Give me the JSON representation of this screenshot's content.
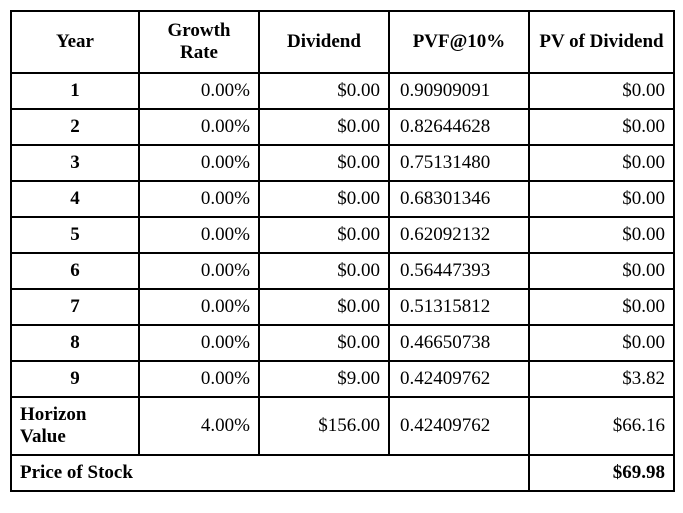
{
  "headers": [
    "Year",
    "Growth Rate",
    "Dividend",
    "PVF@10%",
    "PV of Dividend"
  ],
  "rows": [
    {
      "year": "1",
      "growth": "0.00%",
      "dividend": "$0.00",
      "pvf": "0.90909091",
      "pv": "$0.00"
    },
    {
      "year": "2",
      "growth": "0.00%",
      "dividend": "$0.00",
      "pvf": "0.82644628",
      "pv": "$0.00"
    },
    {
      "year": "3",
      "growth": "0.00%",
      "dividend": "$0.00",
      "pvf": "0.75131480",
      "pv": "$0.00"
    },
    {
      "year": "4",
      "growth": "0.00%",
      "dividend": "$0.00",
      "pvf": "0.68301346",
      "pv": "$0.00"
    },
    {
      "year": "5",
      "growth": "0.00%",
      "dividend": "$0.00",
      "pvf": "0.62092132",
      "pv": "$0.00"
    },
    {
      "year": "6",
      "growth": "0.00%",
      "dividend": "$0.00",
      "pvf": "0.56447393",
      "pv": "$0.00"
    },
    {
      "year": "7",
      "growth": "0.00%",
      "dividend": "$0.00",
      "pvf": "0.51315812",
      "pv": "$0.00"
    },
    {
      "year": "8",
      "growth": "0.00%",
      "dividend": "$0.00",
      "pvf": "0.46650738",
      "pv": "$0.00"
    },
    {
      "year": "9",
      "growth": "0.00%",
      "dividend": "$9.00",
      "pvf": "0.42409762",
      "pv": "$3.82"
    }
  ],
  "horizon": {
    "label": "Horizon Value",
    "growth": "4.00%",
    "dividend": "$156.00",
    "pvf": "0.42409762",
    "pv": "$66.16"
  },
  "price": {
    "label": "Price of Stock",
    "value": "$69.98"
  },
  "style": {
    "border_color": "#000000",
    "background": "#ffffff",
    "font_family": "Times New Roman",
    "header_fontsize": 19,
    "cell_fontsize": 19
  }
}
